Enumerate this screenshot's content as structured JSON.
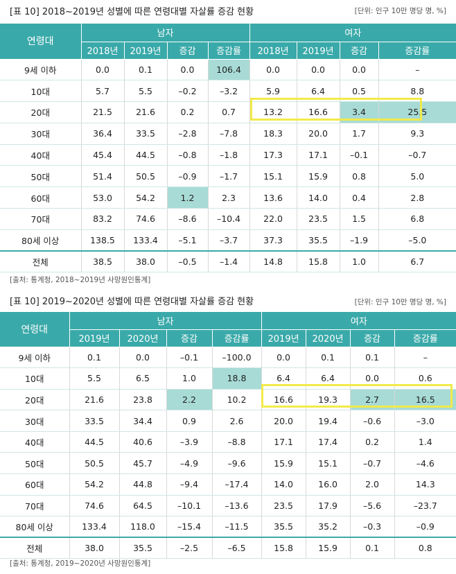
{
  "tables": [
    {
      "title": "[표 10] 2018~2019년 성별에 따른 연령대별 자살률 증감 현황",
      "unit": "[단위: 인구 10만 명당 명, %]",
      "corner": "연령대",
      "groups": [
        "남자",
        "여자"
      ],
      "subheaders": [
        "2018년",
        "2019년",
        "증감",
        "증감률",
        "2018년",
        "2019년",
        "증감",
        "증감률"
      ],
      "rows": [
        {
          "age": "9세 이하",
          "cells": [
            "0.0",
            "0.1",
            "0.0",
            "106.4",
            "0.0",
            "0.0",
            "0.0",
            "–"
          ]
        },
        {
          "age": "10대",
          "cells": [
            "5.7",
            "5.5",
            "–0.2",
            "–3.2",
            "5.9",
            "6.4",
            "0.5",
            "8.8"
          ]
        },
        {
          "age": "20대",
          "cells": [
            "21.5",
            "21.6",
            "0.2",
            "0.7",
            "13.2",
            "16.6",
            "3.4",
            "25.5"
          ]
        },
        {
          "age": "30대",
          "cells": [
            "36.4",
            "33.5",
            "–2.8",
            "–7.8",
            "18.3",
            "20.0",
            "1.7",
            "9.3"
          ]
        },
        {
          "age": "40대",
          "cells": [
            "45.4",
            "44.5",
            "–0.8",
            "–1.8",
            "17.3",
            "17.1",
            "–0.1",
            "–0.7"
          ]
        },
        {
          "age": "50대",
          "cells": [
            "51.4",
            "50.5",
            "–0.9",
            "–1.7",
            "15.1",
            "15.9",
            "0.8",
            "5.0"
          ]
        },
        {
          "age": "60대",
          "cells": [
            "53.0",
            "54.2",
            "1.2",
            "2.3",
            "13.6",
            "14.0",
            "0.4",
            "2.8"
          ]
        },
        {
          "age": "70대",
          "cells": [
            "83.2",
            "74.6",
            "–8.6",
            "–10.4",
            "22.0",
            "23.5",
            "1.5",
            "6.8"
          ]
        },
        {
          "age": "80세 이상",
          "cells": [
            "138.5",
            "133.4",
            "–5.1",
            "–3.7",
            "37.3",
            "35.5",
            "–1.9",
            "–5.0"
          ]
        },
        {
          "age": "전체",
          "cells": [
            "38.5",
            "38.0",
            "–0.5",
            "–1.4",
            "14.8",
            "15.8",
            "1.0",
            "6.7"
          ]
        }
      ],
      "highlights": [
        "0-3",
        "2-6",
        "2-7",
        "6-2"
      ],
      "source": "[출처: 통계청, 2018~2019년 사망원인통계]"
    },
    {
      "title": "[표 10] 2019~2020년 성별에 따른 연령대별 자살률 증감 현황",
      "unit": "[단위: 인구 10만 명당 명, %]",
      "corner": "연령대",
      "groups": [
        "남자",
        "여자"
      ],
      "subheaders": [
        "2019년",
        "2020년",
        "증감",
        "증감률",
        "2019년",
        "2020년",
        "증감",
        "증감률"
      ],
      "rows": [
        {
          "age": "9세 이하",
          "cells": [
            "0.1",
            "0.0",
            "–0.1",
            "–100.0",
            "0.0",
            "0.1",
            "0.1",
            "–"
          ]
        },
        {
          "age": "10대",
          "cells": [
            "5.5",
            "6.5",
            "1.0",
            "18.8",
            "6.4",
            "6.4",
            "0.0",
            "0.6"
          ]
        },
        {
          "age": "20대",
          "cells": [
            "21.6",
            "23.8",
            "2.2",
            "10.2",
            "16.6",
            "19.3",
            "2.7",
            "16.5"
          ]
        },
        {
          "age": "30대",
          "cells": [
            "33.5",
            "34.4",
            "0.9",
            "2.6",
            "20.0",
            "19.4",
            "–0.6",
            "–3.0"
          ]
        },
        {
          "age": "40대",
          "cells": [
            "44.5",
            "40.6",
            "–3.9",
            "–8.8",
            "17.1",
            "17.4",
            "0.2",
            "1.4"
          ]
        },
        {
          "age": "50대",
          "cells": [
            "50.5",
            "45.7",
            "–4.9",
            "–9.6",
            "15.9",
            "15.1",
            "–0.7",
            "–4.6"
          ]
        },
        {
          "age": "60대",
          "cells": [
            "54.2",
            "44.8",
            "–9.4",
            "–17.4",
            "14.0",
            "16.0",
            "2.0",
            "14.3"
          ]
        },
        {
          "age": "70대",
          "cells": [
            "74.6",
            "64.5",
            "–10.1",
            "–13.6",
            "23.5",
            "17.9",
            "–5.6",
            "–23.7"
          ]
        },
        {
          "age": "80세 이상",
          "cells": [
            "133.4",
            "118.0",
            "–15.4",
            "–11.5",
            "35.5",
            "35.2",
            "–0.3",
            "–0.9"
          ]
        },
        {
          "age": "전체",
          "cells": [
            "38.0",
            "35.5",
            "–2.5",
            "–6.5",
            "15.8",
            "15.9",
            "0.1",
            "0.8"
          ]
        }
      ],
      "highlights": [
        "1-3",
        "2-2",
        "2-6",
        "2-7"
      ],
      "source": "[출처: 통계청, 2019~2020년 사망원인통계]"
    }
  ],
  "colors": {
    "header": "#3aa9a9",
    "highlight": "#a8dbd6",
    "box": "#f2ea4a"
  }
}
